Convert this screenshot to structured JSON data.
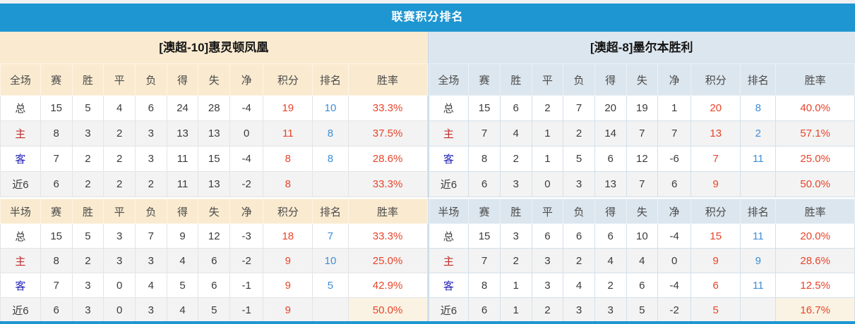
{
  "header": {
    "title": "联赛积分排名"
  },
  "columns": {
    "full_label": "全场",
    "half_label": "半场",
    "stats": [
      "赛",
      "胜",
      "平",
      "负",
      "得",
      "失",
      "净",
      "积分",
      "排名",
      "胜率"
    ]
  },
  "colors": {
    "accent_blue": "#1e96d2",
    "points_red": "#e8442a",
    "rank_blue": "#3e8ed8",
    "home_label_red": "#c12b2b",
    "away_label_blue": "#2424b6",
    "left_theme_bg": "#faebd0",
    "right_theme_bg": "#dce6ee"
  },
  "teams": [
    {
      "name": "[澳超-10]惠灵顿凤凰",
      "full": [
        {
          "label": "总",
          "type": "total",
          "cells": [
            "15",
            "5",
            "4",
            "6",
            "24",
            "28",
            "-4",
            "19",
            "10",
            "33.3%"
          ]
        },
        {
          "label": "主",
          "type": "home",
          "cells": [
            "8",
            "3",
            "2",
            "3",
            "13",
            "13",
            "0",
            "11",
            "8",
            "37.5%"
          ]
        },
        {
          "label": "客",
          "type": "away",
          "cells": [
            "7",
            "2",
            "2",
            "3",
            "11",
            "15",
            "-4",
            "8",
            "8",
            "28.6%"
          ]
        },
        {
          "label": "近6",
          "type": "recent",
          "cells": [
            "6",
            "2",
            "2",
            "2",
            "11",
            "13",
            "-2",
            "8",
            "",
            "33.3%"
          ]
        }
      ],
      "half": [
        {
          "label": "总",
          "type": "total",
          "cells": [
            "15",
            "5",
            "3",
            "7",
            "9",
            "12",
            "-3",
            "18",
            "7",
            "33.3%"
          ]
        },
        {
          "label": "主",
          "type": "home",
          "cells": [
            "8",
            "2",
            "3",
            "3",
            "4",
            "6",
            "-2",
            "9",
            "10",
            "25.0%"
          ]
        },
        {
          "label": "客",
          "type": "away",
          "cells": [
            "7",
            "3",
            "0",
            "4",
            "5",
            "6",
            "-1",
            "9",
            "5",
            "42.9%"
          ]
        },
        {
          "label": "近6",
          "type": "recent",
          "cells": [
            "6",
            "3",
            "0",
            "3",
            "4",
            "5",
            "-1",
            "9",
            "",
            "50.0%"
          ]
        }
      ]
    },
    {
      "name": "[澳超-8]墨尔本胜利",
      "full": [
        {
          "label": "总",
          "type": "total",
          "cells": [
            "15",
            "6",
            "2",
            "7",
            "20",
            "19",
            "1",
            "20",
            "8",
            "40.0%"
          ]
        },
        {
          "label": "主",
          "type": "home",
          "cells": [
            "7",
            "4",
            "1",
            "2",
            "14",
            "7",
            "7",
            "13",
            "2",
            "57.1%"
          ]
        },
        {
          "label": "客",
          "type": "away",
          "cells": [
            "8",
            "2",
            "1",
            "5",
            "6",
            "12",
            "-6",
            "7",
            "11",
            "25.0%"
          ]
        },
        {
          "label": "近6",
          "type": "recent",
          "cells": [
            "6",
            "3",
            "0",
            "3",
            "13",
            "7",
            "6",
            "9",
            "",
            "50.0%"
          ]
        }
      ],
      "half": [
        {
          "label": "总",
          "type": "total",
          "cells": [
            "15",
            "3",
            "6",
            "6",
            "6",
            "10",
            "-4",
            "15",
            "11",
            "20.0%"
          ]
        },
        {
          "label": "主",
          "type": "home",
          "cells": [
            "7",
            "2",
            "3",
            "2",
            "4",
            "4",
            "0",
            "9",
            "9",
            "28.6%"
          ]
        },
        {
          "label": "客",
          "type": "away",
          "cells": [
            "8",
            "1",
            "3",
            "4",
            "2",
            "6",
            "-4",
            "6",
            "11",
            "12.5%"
          ]
        },
        {
          "label": "近6",
          "type": "recent",
          "cells": [
            "6",
            "1",
            "2",
            "3",
            "3",
            "5",
            "-2",
            "5",
            "",
            "16.7%"
          ]
        }
      ]
    }
  ]
}
